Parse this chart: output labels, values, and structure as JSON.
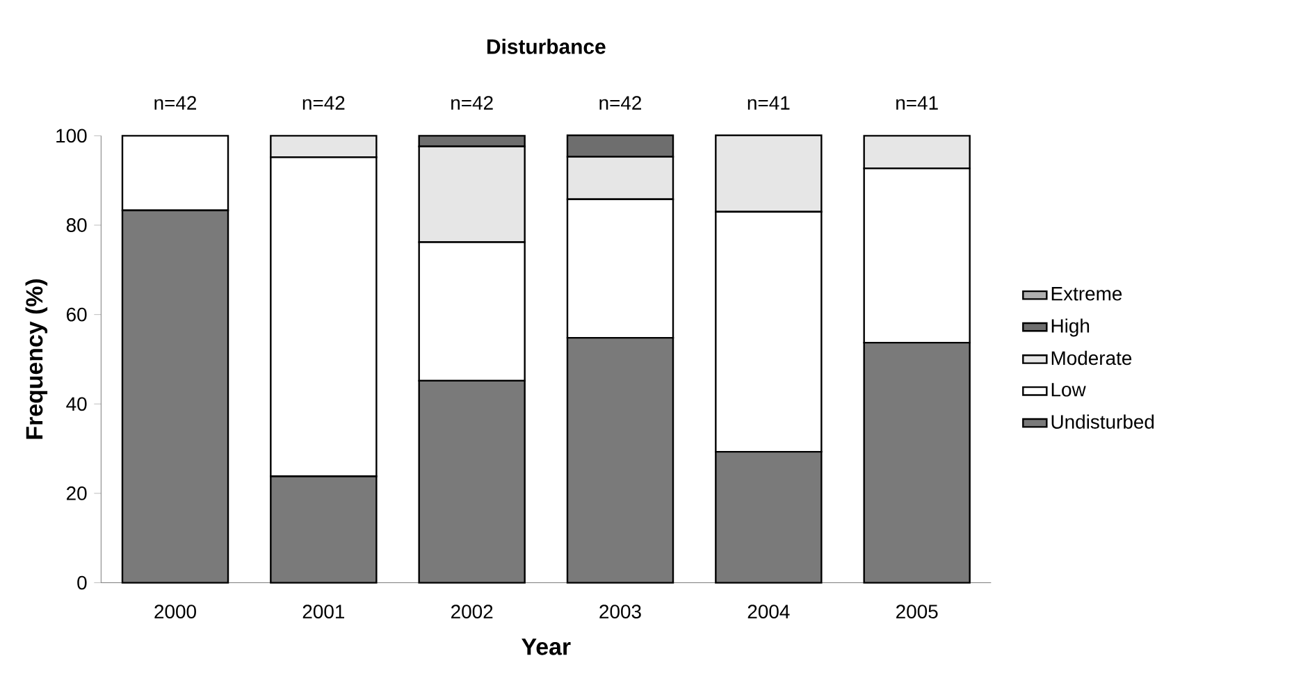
{
  "chart_data": {
    "type": "bar",
    "stacked": true,
    "title": "Disturbance",
    "xlabel": "Year",
    "ylabel": "Frequency (%)",
    "categories": [
      "2000",
      "2001",
      "2002",
      "2003",
      "2004",
      "2005"
    ],
    "series": [
      {
        "name": "Undisturbed",
        "color": "#7a7a7a",
        "values": [
          83.3,
          23.8,
          45.2,
          54.8,
          29.3,
          53.7
        ]
      },
      {
        "name": "Low",
        "color": "#ffffff",
        "values": [
          16.7,
          71.4,
          31.0,
          31.0,
          53.7,
          39.0
        ]
      },
      {
        "name": "Moderate",
        "color": "#e6e6e6",
        "values": [
          0,
          4.8,
          21.4,
          9.5,
          17.1,
          7.3
        ]
      },
      {
        "name": "High",
        "color": "#6e6e6e",
        "values": [
          0,
          0,
          2.4,
          4.8,
          0,
          0
        ]
      },
      {
        "name": "Extreme",
        "color": "#b0b0b0",
        "values": [
          0,
          0,
          0,
          0,
          0,
          0
        ]
      }
    ],
    "ylim": [
      0,
      100
    ],
    "yticks": [
      0,
      20,
      40,
      60,
      80,
      100
    ],
    "grid": false,
    "legend": "right",
    "annotations": [
      {
        "text": "n=42",
        "x": "2000",
        "y": 100
      },
      {
        "text": "n=42",
        "x": "2001",
        "y": 100
      },
      {
        "text": "n=42",
        "x": "2002",
        "y": 100
      },
      {
        "text": "n=42",
        "x": "2003",
        "y": 100
      },
      {
        "text": "n=41",
        "x": "2004",
        "y": 100
      },
      {
        "text": "n=41",
        "x": "2005",
        "y": 100
      }
    ]
  }
}
